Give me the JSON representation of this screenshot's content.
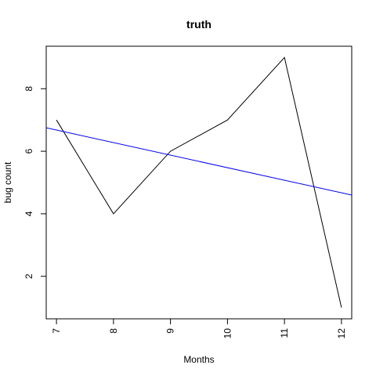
{
  "chart_data": {
    "type": "line",
    "title": "truth",
    "xlabel": "Months",
    "ylabel": "bug count",
    "xlim": [
      6.82,
      12.18
    ],
    "ylim": [
      0.64,
      9.36
    ],
    "x_ticks": [
      7,
      8,
      9,
      10,
      11,
      12
    ],
    "y_ticks": [
      2,
      4,
      6,
      8
    ],
    "grid": false,
    "series": [
      {
        "x": [
          7,
          8,
          9,
          10,
          11,
          12
        ],
        "y": [
          7,
          4,
          6,
          7,
          9,
          1
        ],
        "color": "#000000"
      },
      {
        "kind": "abline",
        "x": [
          6.82,
          12.18
        ],
        "y": [
          6.75,
          4.6
        ],
        "color": "#0000ff"
      }
    ]
  }
}
